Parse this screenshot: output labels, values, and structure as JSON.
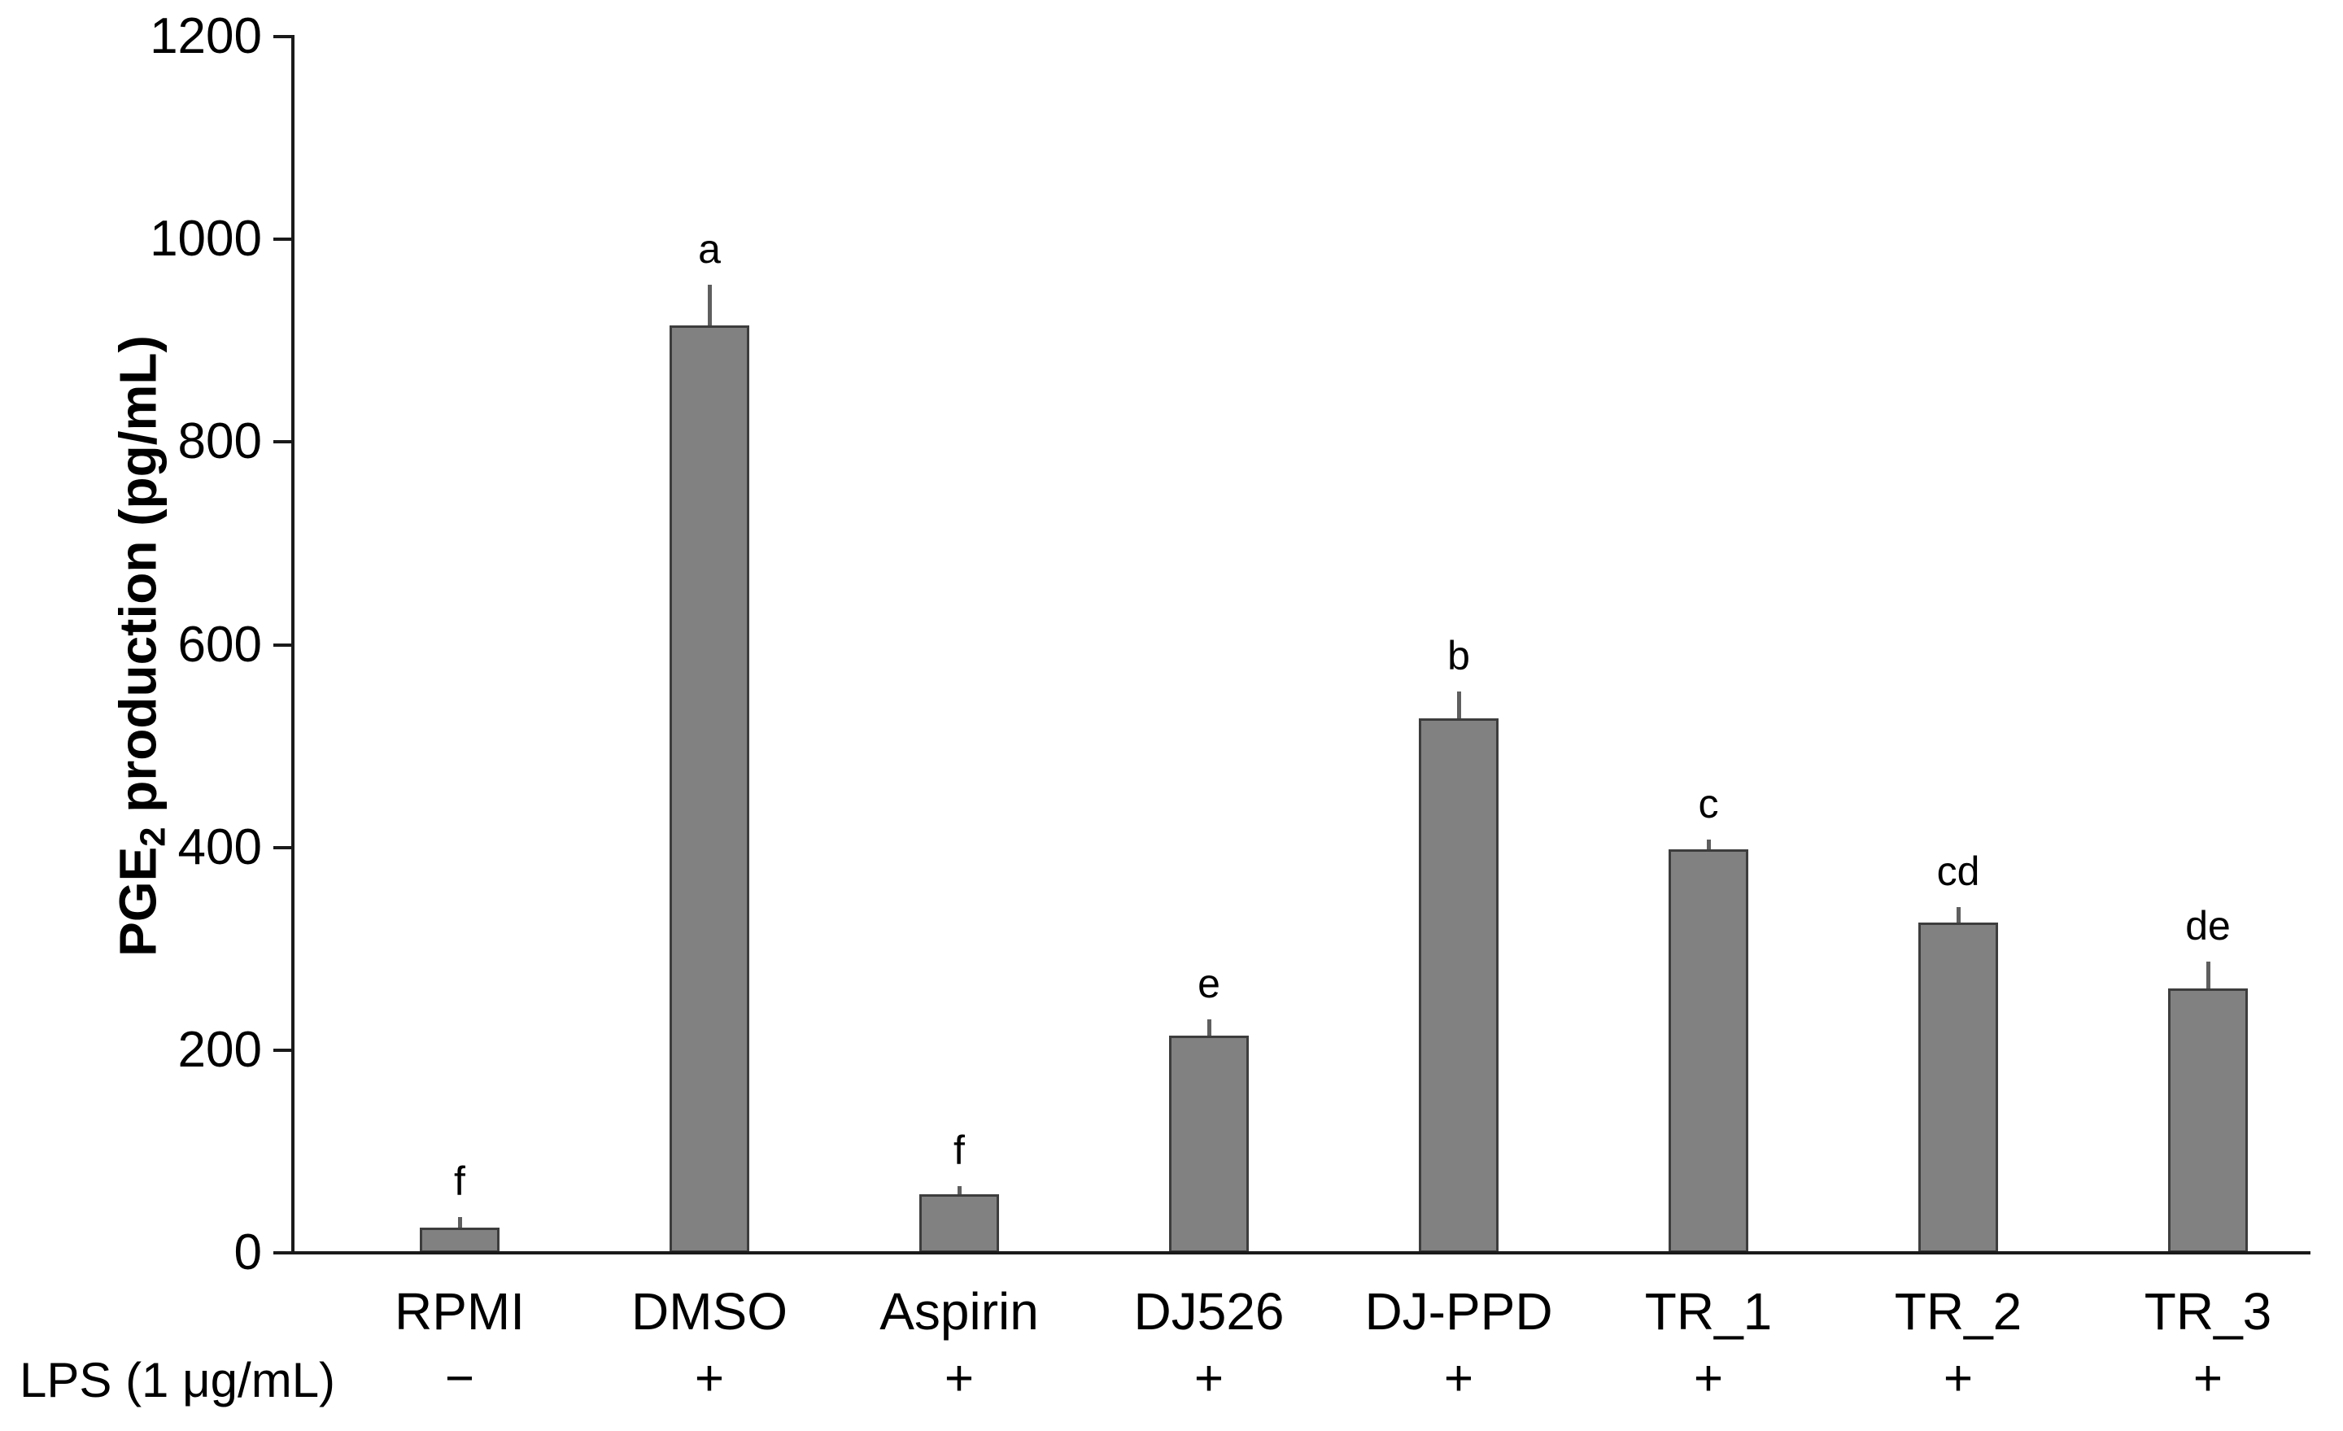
{
  "chart_data": {
    "type": "bar",
    "title": "",
    "ylabel": {
      "prefix": "PGE",
      "sub": "2",
      "suffix": " production (pg/mL)"
    },
    "xlabel": "",
    "ylim": [
      0,
      1200
    ],
    "yticks": [
      0,
      200,
      400,
      600,
      800,
      1000,
      1200
    ],
    "grid": false,
    "legend": "none",
    "categories": [
      "RPMI",
      "DMSO",
      "Aspirin",
      "DJ526",
      "DJ-PPD",
      "TR_1",
      "TR_2",
      "TR_3"
    ],
    "series": [
      {
        "name": "PGE2 production (pg/mL)",
        "values": [
          25,
          915,
          58,
          214,
          527,
          398,
          326,
          261
        ],
        "errors_upper": [
          10,
          40,
          8,
          16,
          27,
          10,
          15,
          26
        ]
      }
    ],
    "sig_letters": [
      "f",
      "a",
      "f",
      "e",
      "b",
      "c",
      "cd",
      "de"
    ],
    "lps_row": {
      "label": "LPS (1 μg/mL)",
      "symbols": [
        "−",
        "+",
        "+",
        "+",
        "+",
        "+",
        "+",
        "+"
      ]
    },
    "colors": {
      "bar_fill": "#818181",
      "bar_border": "#3d3d3d",
      "error_bar": "#5f5f5f",
      "axis": "#1a1a1a",
      "text": "#000000"
    }
  }
}
